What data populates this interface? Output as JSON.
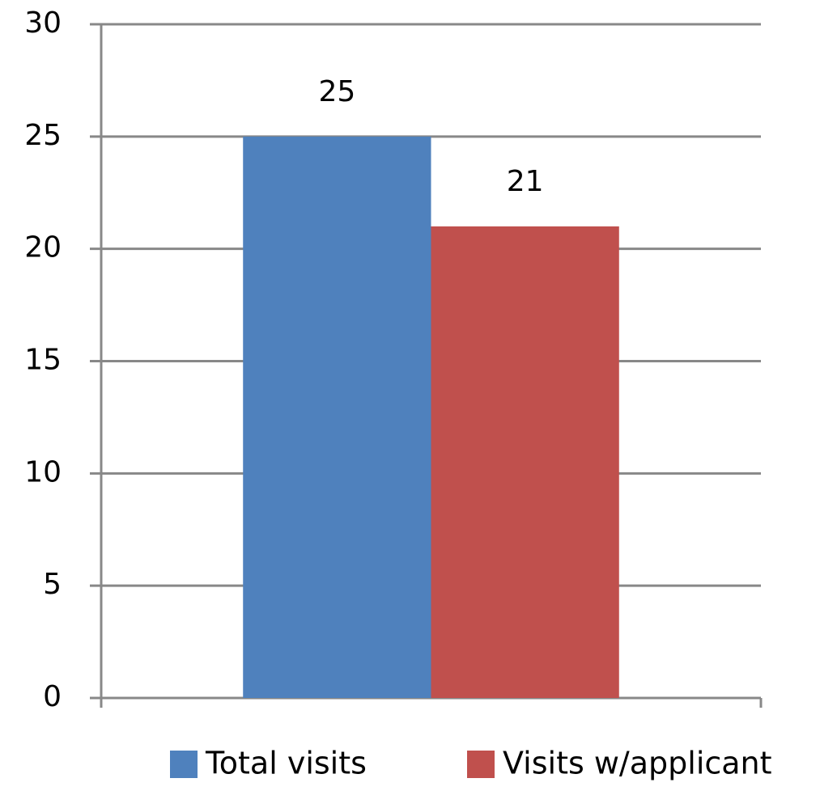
{
  "chart_data": {
    "type": "bar",
    "categories": [
      null
    ],
    "series": [
      {
        "name": "Total visits",
        "color": "#4f81bd",
        "values": [
          25
        ]
      },
      {
        "name": "Visits w/applicant",
        "color": "#c0504d",
        "values": [
          21
        ]
      }
    ],
    "ylim": [
      0,
      30
    ],
    "yticks": [
      0,
      5,
      10,
      15,
      20,
      25,
      30
    ],
    "grid": true,
    "legend": "bottom",
    "data_labels": true
  }
}
